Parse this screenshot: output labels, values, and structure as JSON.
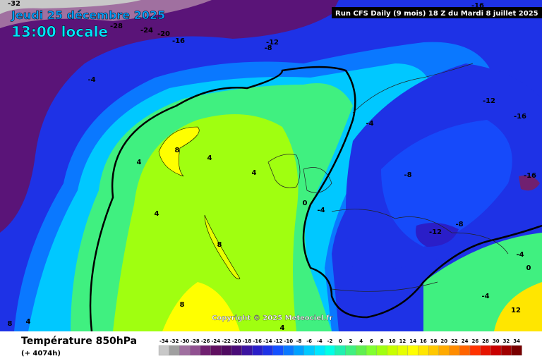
{
  "header": {
    "date": "Jeudi 25 décembre 2025",
    "time": "13:00 locale",
    "run": "Run CFS Daily (9 mois) 18 Z du Mardi 8 juillet 2025"
  },
  "map": {
    "contour_labels": [
      -32,
      -28,
      -24,
      -20,
      -16,
      -12,
      -8,
      -4,
      -16,
      -12,
      -16,
      -4,
      8,
      4,
      4,
      4,
      -8,
      -16,
      0,
      -4,
      4,
      -12,
      -8,
      8,
      -4,
      0,
      8,
      -4,
      12,
      4,
      8,
      4
    ],
    "copyright": "Copyright © 2025 Meteociel.fr"
  },
  "footer": {
    "title": "Température 850hPa",
    "subtitle": "(+ 4074h)"
  },
  "scale": {
    "labels": [
      -34,
      -32,
      -30,
      -28,
      -26,
      -24,
      -22,
      -20,
      -18,
      -16,
      -14,
      -12,
      -10,
      -8,
      -6,
      -4,
      -2,
      0,
      2,
      4,
      6,
      8,
      10,
      12,
      14,
      16,
      18,
      20,
      22,
      24,
      26,
      28,
      30,
      32,
      34
    ],
    "colors": [
      "#c8c8c8",
      "#a0a0a0",
      "#a070a0",
      "#905090",
      "#702070",
      "#601060",
      "#500a60",
      "#4a0c78",
      "#3c14a0",
      "#2a1ec8",
      "#1e32e6",
      "#1450ff",
      "#0a78ff",
      "#00a0ff",
      "#00c8ff",
      "#00e6ff",
      "#00ffe6",
      "#20f0b0",
      "#40f080",
      "#60f050",
      "#80ff30",
      "#a0ff10",
      "#c8ff00",
      "#e6ff00",
      "#ffff00",
      "#ffe600",
      "#ffc800",
      "#ffaa00",
      "#ff8c00",
      "#ff6400",
      "#ff3200",
      "#e61400",
      "#c80000",
      "#a00000",
      "#780000"
    ]
  }
}
